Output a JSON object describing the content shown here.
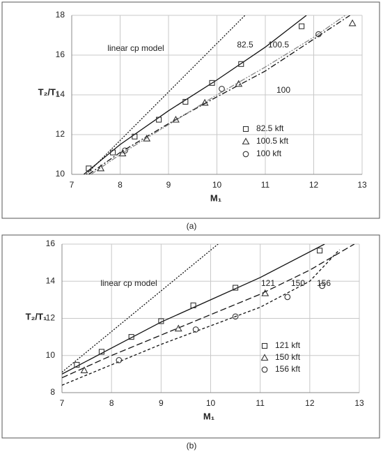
{
  "chart_data": [
    {
      "type": "scatter",
      "label": "(a)",
      "x_label": "M₁",
      "y_label": "T₂/T₁",
      "xlim": [
        7,
        13
      ],
      "ylim": [
        10,
        18
      ],
      "xticks": [
        7,
        8,
        9,
        10,
        11,
        12,
        13
      ],
      "yticks": [
        10,
        12,
        14,
        16,
        18
      ],
      "grid": true,
      "annotations": [
        "linear cp model",
        "82.5",
        "100.5",
        "100"
      ],
      "series": [
        {
          "name": "82.5 kft",
          "marker": "square",
          "color": "#333",
          "x": [
            7.35,
            7.85,
            8.3,
            8.8,
            9.35,
            9.9,
            10.5,
            11.75
          ],
          "values": [
            10.3,
            11.1,
            11.9,
            12.75,
            13.65,
            14.6,
            15.55,
            17.45
          ]
        },
        {
          "name": "100.5 kft",
          "marker": "triangle",
          "color": "#333",
          "x": [
            7.6,
            8.05,
            8.55,
            9.15,
            9.75,
            10.45,
            12.8
          ],
          "values": [
            10.3,
            11.05,
            11.8,
            12.75,
            13.6,
            14.55,
            17.6
          ]
        },
        {
          "name": "100 kft",
          "marker": "circle",
          "color": "#333",
          "x": [
            8.1,
            10.1,
            12.1
          ],
          "values": [
            11.2,
            14.3,
            17.05
          ]
        }
      ],
      "lines": [
        {
          "dash": "2,2",
          "color": "#111",
          "x": [
            7.3,
            10.58
          ],
          "values": [
            10,
            18
          ]
        },
        {
          "dash": "none",
          "color": "#111",
          "x": [
            7.25,
            8,
            9,
            10,
            11,
            11.85
          ],
          "values": [
            10,
            11.5,
            13.2,
            14.75,
            16.4,
            18
          ]
        },
        {
          "dash": "8,3,2,3",
          "color": "#111",
          "x": [
            7.35,
            8,
            9,
            10,
            11,
            12,
            12.75
          ],
          "values": [
            10,
            11.1,
            12.55,
            13.9,
            15.2,
            16.8,
            18
          ]
        },
        {
          "dash": "8,2,2,2,2,2",
          "color": "#888",
          "x": [
            7.4,
            8,
            9,
            10,
            11,
            12,
            12.65
          ],
          "values": [
            10,
            11,
            12.5,
            14,
            15.4,
            16.9,
            18
          ]
        }
      ]
    },
    {
      "type": "scatter",
      "label": "(b)",
      "x_label": "M₁",
      "y_label": "T₂/T₁",
      "xlim": [
        7,
        13
      ],
      "ylim": [
        8,
        16
      ],
      "xticks": [
        7,
        8,
        9,
        10,
        11,
        12,
        13
      ],
      "yticks": [
        8,
        10,
        12,
        14,
        16
      ],
      "grid": true,
      "annotations": [
        "linear cp model",
        "121",
        "150",
        "156"
      ],
      "series": [
        {
          "name": "121 kft",
          "marker": "square",
          "color": "#333",
          "x": [
            7.3,
            7.8,
            8.4,
            9.0,
            9.65,
            10.5,
            12.2
          ],
          "values": [
            9.5,
            10.2,
            11.0,
            11.85,
            12.7,
            13.65,
            15.65
          ]
        },
        {
          "name": "150 kft",
          "marker": "triangle",
          "color": "#333",
          "x": [
            7.45,
            9.35,
            11.1
          ],
          "values": [
            9.2,
            11.45,
            13.35
          ]
        },
        {
          "name": "156 kft",
          "marker": "circle",
          "color": "#333",
          "x": [
            8.15,
            9.7,
            10.5,
            11.55,
            12.25
          ],
          "values": [
            9.75,
            11.4,
            12.1,
            13.15,
            13.75
          ]
        }
      ],
      "lines": [
        {
          "dash": "2,2",
          "color": "#111",
          "x": [
            7,
            10.15
          ],
          "values": [
            9.1,
            16
          ]
        },
        {
          "dash": "none",
          "color": "#111",
          "x": [
            7,
            8,
            9,
            10,
            11,
            12.3
          ],
          "values": [
            9,
            10.4,
            11.8,
            13,
            14.2,
            16
          ]
        },
        {
          "dash": "9,4",
          "color": "#111",
          "x": [
            7,
            8,
            9,
            10,
            11,
            12,
            12.9
          ],
          "values": [
            8.8,
            10,
            11.1,
            12.2,
            13.3,
            14.6,
            16
          ]
        },
        {
          "dash": "4,3",
          "color": "#111",
          "x": [
            7,
            8,
            9,
            10,
            11,
            12,
            12.6
          ],
          "values": [
            8.4,
            9.5,
            10.6,
            11.6,
            12.6,
            14,
            15.7
          ]
        }
      ]
    }
  ]
}
